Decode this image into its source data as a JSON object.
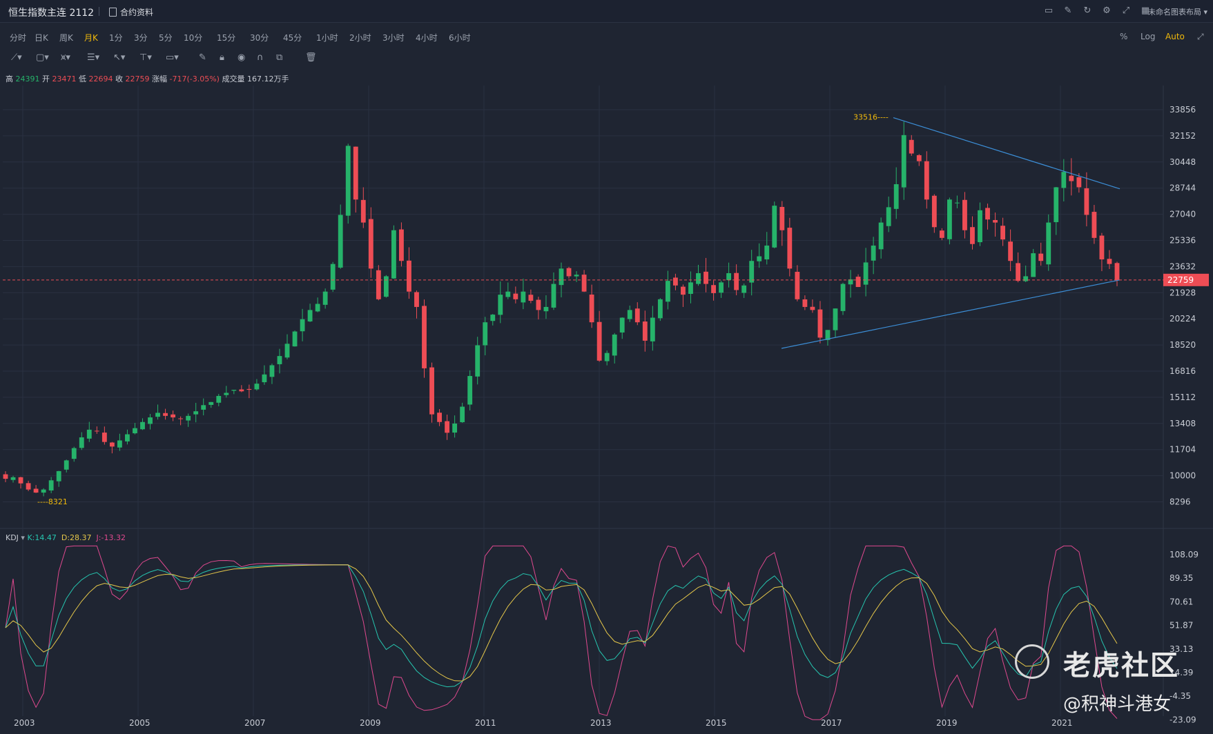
{
  "header": {
    "title": "恒生指数主连 2112",
    "contract_link": "合约资料",
    "layout_label": "未命名图表布局"
  },
  "periods": [
    "分时",
    "日K",
    "周K",
    "月K",
    "1分",
    "3分",
    "5分",
    "10分",
    "15分",
    "30分",
    "45分",
    "1小时",
    "2小时",
    "3小时",
    "4小时",
    "6小时"
  ],
  "active_period": "月K",
  "right_controls": [
    "%",
    "Log",
    "Auto"
  ],
  "active_right_control": "Auto",
  "ohlc": {
    "high_label": "高",
    "high": "24391",
    "open_label": "开",
    "open": "23471",
    "low_label": "低",
    "low": "22694",
    "close_label": "收",
    "close": "22759",
    "chg_label": "涨幅",
    "chg": "-717(-3.05%)",
    "vol_label": "成交量",
    "vol": "167.12万手"
  },
  "kdj": {
    "name": "KDJ",
    "k": "K:14.47",
    "d": "D:28.37",
    "j": "J:-13.32"
  },
  "watermark": "老虎社区",
  "handle": "@积神斗港女",
  "chart_data": [
    {
      "type": "candlestick",
      "years": [
        "2003",
        "2005",
        "2007",
        "2009",
        "2011",
        "2013",
        "2015",
        "2017",
        "2019",
        "2021"
      ],
      "price_ticks": [
        33856,
        32152,
        30448,
        28744,
        27040,
        25336,
        23632,
        21928,
        20224,
        18520,
        16816,
        15112,
        13408,
        11704,
        10000,
        8296
      ],
      "current_price": "22759",
      "annotations": [
        {
          "label": "33516",
          "note": "high"
        },
        {
          "label": "8321",
          "note": "low"
        }
      ],
      "monthly_close_approx": [
        9800,
        9900,
        9500,
        9100,
        8900,
        9100,
        9700,
        10300,
        11000,
        11800,
        12500,
        13000,
        12900,
        12200,
        11900,
        12300,
        12700,
        13100,
        13500,
        13800,
        14100,
        13900,
        13800,
        13700,
        13900,
        14200,
        14600,
        14800,
        15200,
        15400,
        15600,
        15500,
        15600,
        16000,
        16600,
        17200,
        17800,
        18600,
        19400,
        20200,
        20800,
        21200,
        22000,
        23800,
        27000,
        31500,
        28000,
        26500,
        23500,
        21500,
        23000,
        26000,
        24000,
        22000,
        21000,
        17000,
        14000,
        13500,
        12800,
        13400,
        14500,
        16500,
        18500,
        20000,
        20500,
        21800,
        22000,
        21500,
        22000,
        21400,
        20800,
        21000,
        22500,
        23500,
        23000,
        23100,
        22000,
        20000,
        17500,
        18000,
        19200,
        20300,
        20800,
        20000,
        18800,
        20300,
        21500,
        22700,
        22400,
        21800,
        22600,
        23200,
        22500,
        21900,
        22600,
        23200,
        22100,
        22400,
        24000,
        24300,
        25000,
        27600,
        26000,
        23500,
        21500,
        21000,
        20800,
        19000,
        19500,
        20900,
        22500,
        22800,
        22300,
        23900,
        25000,
        26500,
        27500,
        29000,
        32200,
        31000,
        30500,
        28000,
        26200,
        25500,
        28000,
        27800,
        26000,
        25100,
        27300,
        26700,
        26500,
        25400,
        24000,
        22700,
        23000,
        24500,
        24000,
        26500,
        28800,
        29800,
        29200,
        28800,
        27000,
        25500,
        24100,
        23800,
        22759
      ],
      "kdj": {
        "k": 14.47,
        "d": 28.37,
        "j": -13.32
      },
      "kdj_ticks": [
        108.09,
        89.35,
        70.61,
        51.87,
        33.13,
        14.39,
        -4.35,
        -23.09
      ]
    }
  ]
}
